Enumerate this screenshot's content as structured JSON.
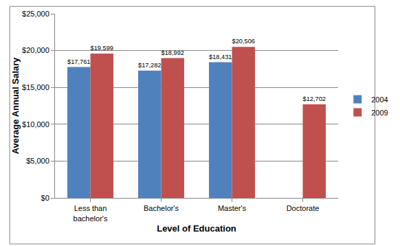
{
  "chart_data": {
    "type": "bar",
    "x_label": "Level of Education",
    "y_label": "Average Annual Salary",
    "categories": [
      "Less than bachelor's",
      "Bachelor's",
      "Master's",
      "Doctorate"
    ],
    "series": [
      {
        "name": "2004",
        "color": "#4f81bd",
        "values": [
          17761,
          17282,
          18431,
          null
        ],
        "value_labels": [
          "$17,761",
          "$17,282",
          "$18,431",
          null
        ]
      },
      {
        "name": "2009",
        "color": "#c0504d",
        "values": [
          19599,
          18992,
          20506,
          12702
        ],
        "value_labels": [
          "$19,599",
          "$18,992",
          "$20,506",
          "$12,702"
        ]
      }
    ],
    "ylim": [
      0,
      25000
    ],
    "yticks": [
      {
        "value": 0,
        "label": "$0"
      },
      {
        "value": 5000,
        "label": "$5,000"
      },
      {
        "value": 10000,
        "label": "$10,000"
      },
      {
        "value": 15000,
        "label": "$15,000"
      },
      {
        "value": 20000,
        "label": "$20,000"
      },
      {
        "value": 25000,
        "label": "$25,000"
      }
    ],
    "grid": true,
    "legend": "right",
    "data_labels": true
  }
}
